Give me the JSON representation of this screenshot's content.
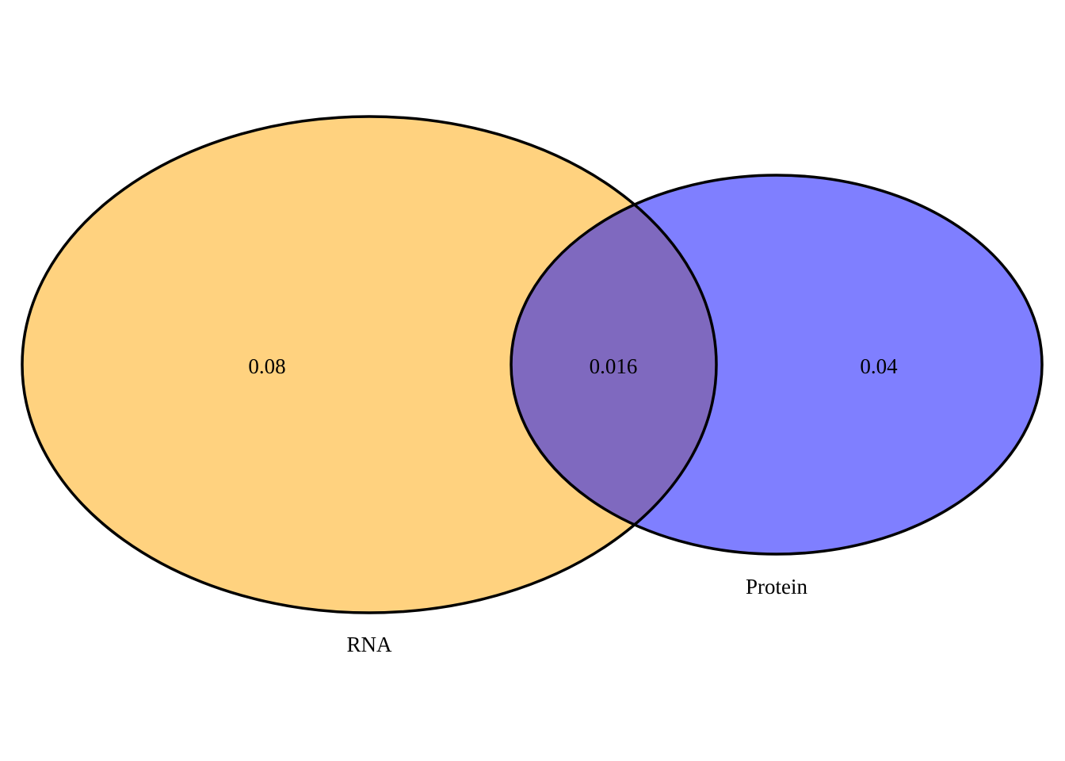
{
  "venn": {
    "sets": [
      {
        "name": "RNA",
        "color": "#FFA500",
        "opacity": 0.5
      },
      {
        "name": "Protein",
        "color": "#0000FF",
        "opacity": 0.5
      }
    ],
    "regions": {
      "rna_only": "0.08",
      "intersection": "0.016",
      "protein_only": "0.04"
    },
    "outline_color": "#000000",
    "background": "#FFFFFF"
  }
}
